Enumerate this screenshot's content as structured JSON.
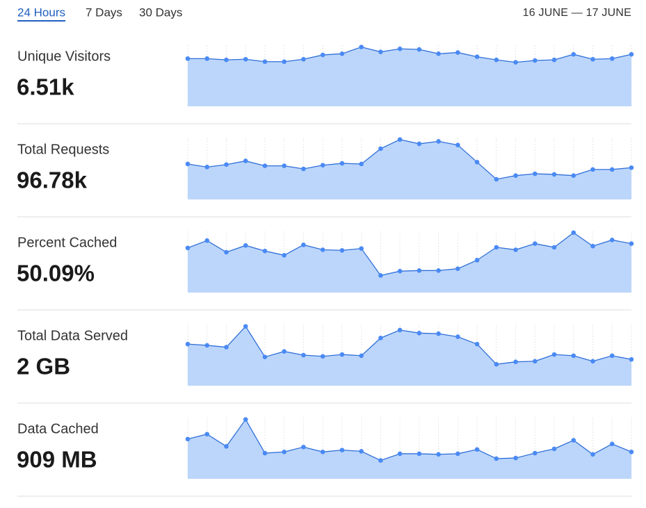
{
  "tabs": [
    "24 Hours",
    "7 Days",
    "30 Days"
  ],
  "active_tab": 0,
  "date_range": "16 JUNE — 17 JUNE",
  "chart_data": [
    {
      "type": "area",
      "title": "Unique Visitors",
      "total": "6.51k",
      "ylim": [
        0,
        100
      ],
      "color": "#2f6fd8",
      "fill": "#bcd6fb",
      "values": [
        78,
        78,
        76,
        77,
        73,
        73,
        77,
        84,
        86,
        97,
        89,
        94,
        93,
        86,
        88,
        81,
        76,
        72,
        75,
        76,
        85,
        77,
        78,
        85
      ]
    },
    {
      "type": "area",
      "title": "Total Requests",
      "total": "96.78k",
      "ylim": [
        0,
        100
      ],
      "color": "#2f6fd8",
      "fill": "#bcd6fb",
      "values": [
        58,
        53,
        57,
        63,
        55,
        55,
        50,
        56,
        59,
        58,
        83,
        98,
        91,
        95,
        89,
        61,
        33,
        39,
        42,
        41,
        39,
        49,
        49,
        52
      ]
    },
    {
      "type": "area",
      "title": "Percent Cached",
      "total": "50.09%",
      "ylim": [
        0,
        100
      ],
      "color": "#2f6fd8",
      "fill": "#bcd6fb",
      "values": [
        73,
        85,
        66,
        77,
        68,
        61,
        78,
        70,
        69,
        72,
        28,
        35,
        36,
        36,
        39,
        53,
        74,
        70,
        80,
        74,
        98,
        76,
        86,
        80
      ]
    },
    {
      "type": "area",
      "title": "Total Data Served",
      "total": "2 GB",
      "ylim": [
        0,
        100
      ],
      "color": "#2f6fd8",
      "fill": "#bcd6fb",
      "values": [
        68,
        66,
        63,
        97,
        47,
        56,
        50,
        48,
        51,
        49,
        78,
        91,
        86,
        85,
        80,
        68,
        35,
        39,
        40,
        51,
        49,
        40,
        49,
        43
      ]
    },
    {
      "type": "area",
      "title": "Data Cached",
      "total": "909 MB",
      "ylim": [
        0,
        100
      ],
      "color": "#2f6fd8",
      "fill": "#bcd6fb",
      "values": [
        65,
        73,
        53,
        97,
        42,
        44,
        52,
        44,
        47,
        45,
        30,
        41,
        41,
        40,
        41,
        48,
        33,
        34,
        42,
        49,
        63,
        40,
        57,
        44
      ]
    }
  ]
}
